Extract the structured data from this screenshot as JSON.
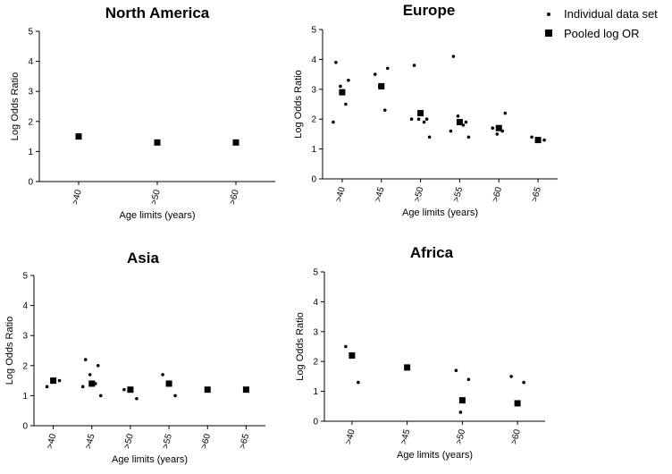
{
  "chart_data": [
    {
      "type": "scatter",
      "title": "North  America",
      "xlabel": "Age limits (years)",
      "ylabel": "Log Odds Ratio",
      "ylim": [
        0,
        5
      ],
      "yticks": [
        "0",
        "1",
        "2",
        "3",
        "4",
        "5"
      ],
      "categories": [
        ">40",
        ">50",
        ">60"
      ],
      "series": [
        {
          "name": "Individual data set",
          "marker": "dot",
          "points": []
        },
        {
          "name": "Pooled log OR",
          "marker": "square",
          "points": [
            [
              ">40",
              1.5
            ],
            [
              ">50",
              1.3
            ],
            [
              ">60",
              1.3
            ]
          ]
        }
      ]
    },
    {
      "type": "scatter",
      "title": "Europe",
      "xlabel": "Age limits (years)",
      "ylabel": "Log Odds Ratio",
      "ylim": [
        0,
        5
      ],
      "yticks": [
        "0",
        "1",
        "2",
        "3",
        "4",
        "5"
      ],
      "categories": [
        ">40",
        ">45",
        ">50",
        ">55",
        ">60",
        ">65"
      ],
      "series": [
        {
          "name": "Individual data set",
          "marker": "dot",
          "points": [
            [
              ">40",
              3.9
            ],
            [
              ">40",
              3.3
            ],
            [
              ">40",
              3.1
            ],
            [
              ">40",
              2.5
            ],
            [
              ">40",
              1.9
            ],
            [
              ">45",
              3.5
            ],
            [
              ">45",
              3.7
            ],
            [
              ">45",
              3.1
            ],
            [
              ">45",
              2.3
            ],
            [
              ">50",
              3.8
            ],
            [
              ">50",
              2.0
            ],
            [
              ">50",
              2.0
            ],
            [
              ">50",
              1.9
            ],
            [
              ">50",
              2.0
            ],
            [
              ">50",
              1.4
            ],
            [
              ">55",
              4.1
            ],
            [
              ">55",
              1.9
            ],
            [
              ">55",
              2.1
            ],
            [
              ">55",
              1.8
            ],
            [
              ">55",
              1.6
            ],
            [
              ">55",
              1.4
            ],
            [
              ">60",
              1.7
            ],
            [
              ">60",
              2.2
            ],
            [
              ">60",
              1.5
            ],
            [
              ">60",
              1.6
            ],
            [
              ">65",
              1.4
            ],
            [
              ">65",
              1.3
            ]
          ]
        },
        {
          "name": "Pooled log OR",
          "marker": "square",
          "points": [
            [
              ">40",
              2.9
            ],
            [
              ">45",
              3.1
            ],
            [
              ">50",
              2.2
            ],
            [
              ">55",
              1.9
            ],
            [
              ">60",
              1.7
            ],
            [
              ">65",
              1.3
            ]
          ]
        }
      ]
    },
    {
      "type": "scatter",
      "title": "Asia",
      "xlabel": "Age limits (years)",
      "ylabel": "Log Odds Ratio",
      "ylim": [
        0,
        5
      ],
      "yticks": [
        "0",
        "1",
        "2",
        "3",
        "4",
        "5"
      ],
      "categories": [
        ">40",
        ">45",
        ">50",
        ">55",
        ">60",
        ">65"
      ],
      "series": [
        {
          "name": "Individual data set",
          "marker": "dot",
          "points": [
            [
              ">40",
              1.3
            ],
            [
              ">40",
              1.5
            ],
            [
              ">45",
              2.2
            ],
            [
              ">45",
              2.0
            ],
            [
              ">45",
              1.7
            ],
            [
              ">45",
              1.4
            ],
            [
              ">45",
              1.3
            ],
            [
              ">45",
              1.0
            ],
            [
              ">50",
              1.2
            ],
            [
              ">50",
              0.9
            ],
            [
              ">55",
              1.7
            ],
            [
              ">55",
              1.0
            ]
          ]
        },
        {
          "name": "Pooled log OR",
          "marker": "square",
          "points": [
            [
              ">40",
              1.5
            ],
            [
              ">45",
              1.4
            ],
            [
              ">50",
              1.2
            ],
            [
              ">55",
              1.4
            ],
            [
              ">60",
              1.2
            ],
            [
              ">65",
              1.2
            ]
          ]
        }
      ]
    },
    {
      "type": "scatter",
      "title": "Africa",
      "xlabel": "Age limits (years)",
      "ylabel": "Log Odds Ratio",
      "ylim": [
        0,
        5
      ],
      "yticks": [
        "0",
        "1",
        "2",
        "3",
        "4",
        "5"
      ],
      "categories": [
        ">40",
        ">45",
        ">50",
        ">60"
      ],
      "series": [
        {
          "name": "Individual data set",
          "marker": "dot",
          "points": [
            [
              ">40",
              2.5
            ],
            [
              ">40",
              1.3
            ],
            [
              ">50",
              1.7
            ],
            [
              ">50",
              1.4
            ],
            [
              ">50",
              0.3
            ],
            [
              ">60",
              1.5
            ],
            [
              ">60",
              1.3
            ]
          ]
        },
        {
          "name": "Pooled log OR",
          "marker": "square",
          "points": [
            [
              ">40",
              2.2
            ],
            [
              ">45",
              1.8
            ],
            [
              ">50",
              0.7
            ],
            [
              ">60",
              0.6
            ]
          ]
        }
      ]
    }
  ],
  "legend": {
    "position": "top-right",
    "items": [
      {
        "marker": "dot",
        "label": "Individual data set"
      },
      {
        "marker": "square",
        "label": "Pooled log OR"
      }
    ]
  }
}
